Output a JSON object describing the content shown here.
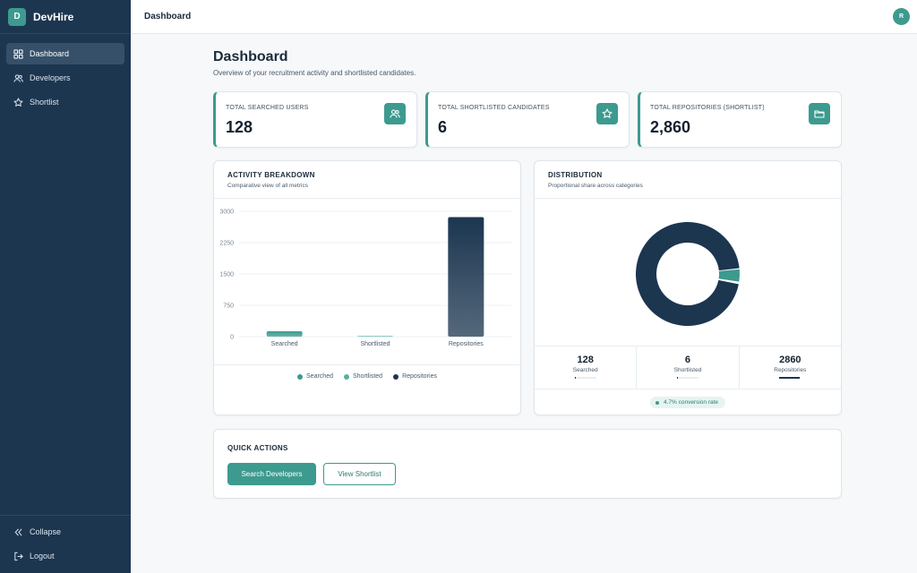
{
  "brand": {
    "logo_letter": "D",
    "name": "DevHire"
  },
  "sidebar": {
    "items": [
      {
        "label": "Dashboard",
        "icon": "dashboard-icon",
        "active": true
      },
      {
        "label": "Developers",
        "icon": "users-icon",
        "active": false
      },
      {
        "label": "Shortlist",
        "icon": "star-icon",
        "active": false
      }
    ],
    "bottom": [
      {
        "label": "Collapse",
        "icon": "double-chevron-left-icon"
      },
      {
        "label": "Logout",
        "icon": "logout-icon"
      }
    ]
  },
  "topbar": {
    "title": "Dashboard",
    "avatar_initial": "R"
  },
  "page": {
    "title": "Dashboard",
    "subtitle": "Overview of your recruitment activity and shortlisted candidates."
  },
  "stats": [
    {
      "label": "TOTAL SEARCHED USERS",
      "value": "128",
      "icon": "users-icon"
    },
    {
      "label": "TOTAL SHORTLISTED CANDIDATES",
      "value": "6",
      "icon": "star-icon"
    },
    {
      "label": "TOTAL REPOSITORIES (SHORTLIST)",
      "value": "2,860",
      "icon": "folder-icon"
    }
  ],
  "activity": {
    "title": "ACTIVITY BREAKDOWN",
    "subtitle": "Comparative view of all metrics"
  },
  "distribution": {
    "title": "DISTRIBUTION",
    "subtitle": "Proportional share across categories",
    "stats": [
      {
        "value": "128",
        "label": "Searched",
        "share": 0.04
      },
      {
        "value": "6",
        "label": "Shortlisted",
        "share": 0.002
      },
      {
        "value": "2860",
        "label": "Repositories",
        "share": 0.955
      }
    ],
    "conversion": "4.7% conversion rate"
  },
  "quick_actions": {
    "title": "QUICK ACTIONS",
    "primary_label": "Search Developers",
    "secondary_label": "View Shortlist"
  },
  "colors": {
    "teal": "#3d9a8f",
    "mint": "#52b3a0",
    "navy": "#1c3650"
  },
  "chart_data": [
    {
      "type": "bar",
      "categories": [
        "Searched",
        "Shortlisted",
        "Repositories"
      ],
      "values": [
        128,
        6,
        2860
      ],
      "colors": [
        "#3d9a8f",
        "#52b3a0",
        "#1c3650"
      ],
      "ylim": [
        0,
        3000
      ],
      "yticks": [
        0,
        750,
        1500,
        2250,
        3000
      ],
      "legend": [
        "Searched",
        "Shortlisted",
        "Repositories"
      ],
      "legend_position": "bottom"
    },
    {
      "type": "pie",
      "donut": true,
      "labels": [
        "Searched",
        "Shortlisted",
        "Repositories"
      ],
      "values": [
        128,
        6,
        2860
      ],
      "colors": [
        "#3d9a8f",
        "#52b3a0",
        "#1c3650"
      ]
    }
  ]
}
